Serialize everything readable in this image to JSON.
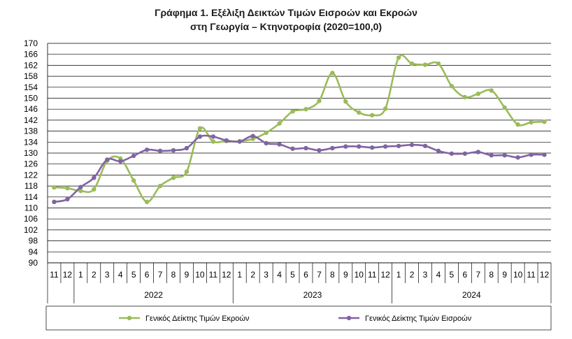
{
  "title": {
    "line1": "Γράφημα 1. Εξέλιξη Δεικτών Τιμών Εισροών και Εκροών",
    "line2": "στη Γεωργία – Κτηνοτροφία (2020=100,0)"
  },
  "chart_data": {
    "type": "line",
    "ylim": [
      90,
      170
    ],
    "ytick_step": 4,
    "grid": true,
    "legend_position": "bottom",
    "month_labels": [
      "11",
      "12",
      "1",
      "2",
      "3",
      "4",
      "5",
      "6",
      "7",
      "8",
      "9",
      "10",
      "11",
      "12",
      "1",
      "2",
      "3",
      "4",
      "5",
      "6",
      "7",
      "8",
      "9",
      "10",
      "11",
      "12",
      "1",
      "2",
      "3",
      "4",
      "5",
      "6",
      "7",
      "8",
      "9",
      "10",
      "11",
      "12"
    ],
    "years": [
      {
        "label": "2022",
        "start": 2,
        "end": 13
      },
      {
        "label": "2023",
        "start": 14,
        "end": 25
      },
      {
        "label": "2024",
        "start": 26,
        "end": 37
      }
    ],
    "series": [
      {
        "name": "Γενικός Δείκτης Τιμών Εκροών",
        "color": "#9bbb59",
        "values": [
          117.5,
          117.2,
          116.2,
          116.8,
          127.2,
          128.0,
          120.0,
          112.2,
          118.0,
          121.0,
          123.2,
          139.0,
          134.2,
          134.4,
          134.3,
          135.2,
          137.4,
          140.8,
          145.2,
          146.0,
          149.0,
          159.2,
          148.8,
          144.8,
          143.8,
          146.2,
          164.8,
          162.6,
          162.2,
          162.6,
          154.4,
          150.4,
          151.6,
          152.8,
          146.6,
          140.4,
          141.2,
          141.4
        ]
      },
      {
        "name": "Γενικός Δείκτης Τιμών Εισροών",
        "color": "#8064a2",
        "values": [
          112.2,
          113.2,
          117.6,
          121.0,
          127.6,
          127.0,
          129.0,
          131.2,
          130.8,
          131.0,
          131.8,
          136.0,
          136.0,
          134.6,
          134.2,
          136.2,
          133.6,
          133.2,
          131.6,
          131.8,
          131.0,
          131.8,
          132.4,
          132.4,
          132.0,
          132.4,
          132.6,
          133.0,
          132.6,
          130.8,
          129.8,
          129.8,
          130.4,
          129.2,
          129.2,
          128.4,
          129.4,
          129.4
        ]
      }
    ]
  }
}
